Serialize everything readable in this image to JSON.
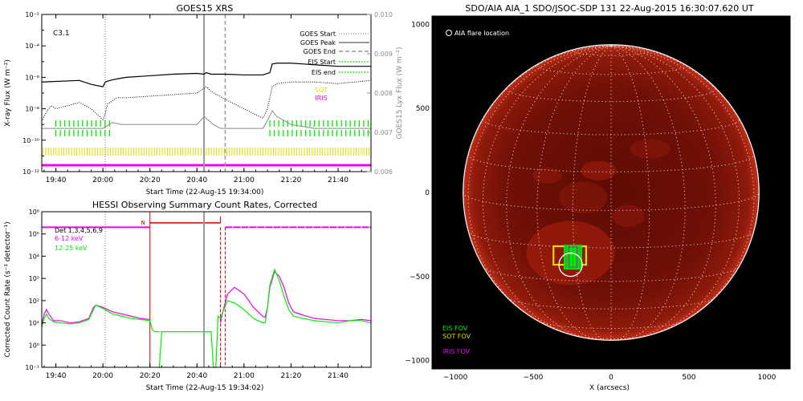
{
  "colors": {
    "goes_line": "#000000",
    "lya_line": "#888888",
    "eis": "#00ee00",
    "sot": "#dddd00",
    "iris": "#ee00ee",
    "hessi_red": "#cc0000",
    "sun_red": "#a81508",
    "sun_bg": "#000000"
  },
  "chart_data": [
    {
      "id": "goes",
      "type": "line",
      "title": "GOES15 XRS",
      "xlabel": "Start Time (22-Aug-15 19:34:00)",
      "ylabel": "X-ray Flux (W m⁻²)",
      "ylabel_right": "GOES15 Lyx Flux (W m⁻²)",
      "xlim_min": [
        34,
        174
      ],
      "xtick_min": [
        40,
        60,
        80,
        100,
        120,
        140,
        160
      ],
      "xtick_labels": [
        "19:40",
        "20:00",
        "20:20",
        "20:40",
        "21:00",
        "21:20",
        "21:40"
      ],
      "ylim_log10": [
        -12,
        -2
      ],
      "ytick_log10": [
        -2,
        -4,
        -6,
        -8,
        -10,
        -12
      ],
      "ytick_labels": [
        "10⁻²",
        "10⁻⁴",
        "10⁻⁶",
        "10⁻⁸",
        "10⁻¹⁰",
        "10⁻¹²"
      ],
      "y2lim": [
        0.006,
        0.01
      ],
      "y2ticks": [
        "0.010",
        "0.009",
        "0.008",
        "0.007",
        "0.006"
      ],
      "class_label": "C3.1",
      "legend": [
        "GOES Start",
        "GOES Peak",
        "GOES End",
        "EIS Start",
        "EIS end",
        "SOT",
        "IRIS"
      ],
      "events_min": {
        "goes_start": 61,
        "goes_peak": 103,
        "goes_end": 112
      },
      "series": [
        {
          "name": "long",
          "x": [
            34,
            50,
            55,
            60,
            61,
            63,
            66,
            70,
            80,
            90,
            100,
            103,
            104,
            106,
            112,
            120,
            128,
            131,
            132,
            134,
            140,
            150,
            160,
            174
          ],
          "y": [
            -6.3,
            -6.2,
            -6.45,
            -6.6,
            -6.3,
            -6.2,
            -6.1,
            -6.0,
            -5.9,
            -5.8,
            -5.75,
            -5.8,
            -5.7,
            -5.8,
            -5.8,
            -5.85,
            -5.85,
            -5.7,
            -5.15,
            -5.1,
            -5.1,
            -5.2,
            -5.3,
            -5.3
          ]
        },
        {
          "name": "short",
          "x": [
            34,
            36,
            38,
            40,
            50,
            55,
            60,
            61,
            62,
            64,
            66,
            70,
            80,
            90,
            100,
            103,
            104,
            106,
            112,
            120,
            128,
            130,
            131,
            132,
            134,
            140,
            150,
            160,
            174
          ],
          "y": [
            -8.8,
            -8.2,
            -7.8,
            -8.0,
            -7.6,
            -8.0,
            -8.7,
            -8.3,
            -7.7,
            -7.5,
            -7.3,
            -7.3,
            -7.2,
            -7.1,
            -7.0,
            -6.7,
            -6.6,
            -6.9,
            -7.4,
            -8.0,
            -8.6,
            -8.0,
            -7.3,
            -6.6,
            -6.4,
            -6.3,
            -6.3,
            -6.4,
            -6.2
          ]
        },
        {
          "name": "lya",
          "x": [
            34,
            60,
            64,
            68,
            100,
            103,
            105,
            107,
            110,
            120,
            128,
            130,
            132,
            134,
            140,
            150,
            160,
            174
          ],
          "y2": [
            0.0071,
            0.0071,
            0.00725,
            0.0072,
            0.0072,
            0.0074,
            0.0073,
            0.0072,
            0.0071,
            0.0071,
            0.0071,
            0.0073,
            0.00755,
            0.0074,
            0.0072,
            0.0071,
            0.0071,
            0.0071
          ]
        }
      ],
      "eis_segments": [
        [
          40,
          63
        ],
        [
          131,
          174
        ]
      ],
      "sot_range": [
        34,
        174
      ],
      "iris_range": [
        34,
        174
      ]
    },
    {
      "id": "hessi",
      "type": "line",
      "title": "HESSI Observing Summary Count Rates, Corrected",
      "xlabel": "Start Time (22-Aug-15 19:34:02)",
      "ylabel": "Corrected Count Rate (s⁻¹ detector⁻¹)",
      "xlim_min": [
        34,
        174
      ],
      "xtick_min": [
        40,
        60,
        80,
        100,
        120,
        140,
        160
      ],
      "xtick_labels": [
        "19:40",
        "20:00",
        "20:20",
        "20:40",
        "21:00",
        "21:20",
        "21:40"
      ],
      "ylim_log10": [
        -1,
        6
      ],
      "ytick_log10": [
        6,
        5,
        4,
        3,
        2,
        1,
        0,
        -1
      ],
      "ytick_labels": [
        "10⁶",
        "10⁵",
        "10⁴",
        "10³",
        "10²",
        "10¹",
        "10⁰",
        "10⁻¹"
      ],
      "legend": [
        "Det 1,3,4,5,6,9",
        "6-12 keV",
        "12-25 keV"
      ],
      "night_marker": "N",
      "events_min": {
        "night_start": 80,
        "peak": 103,
        "end_dash_1": 110,
        "end_dash_2": 112
      },
      "series": [
        {
          "name": "6-12 keV",
          "segments": [
            {
              "x": [
                34,
                35,
                36,
                37,
                39,
                42,
                46,
                50,
                54,
                56,
                57,
                60,
                64,
                68,
                72,
                76,
                80
              ],
              "y": [
                0.9,
                1.4,
                1.6,
                1.4,
                1.1,
                1.1,
                1.0,
                1.05,
                1.2,
                1.7,
                1.8,
                1.7,
                1.5,
                1.4,
                1.3,
                1.2,
                1.15
              ]
            },
            {
              "x": [
                110,
                111,
                113,
                116,
                120,
                124,
                128,
                129,
                130,
                131,
                133,
                135,
                137,
                139,
                141,
                145,
                150,
                155,
                160,
                165,
                170,
                174
              ],
              "y": [
                1.0,
                1.5,
                2.3,
                2.6,
                2.3,
                1.7,
                1.3,
                1.25,
                1.7,
                2.6,
                3.3,
                3.1,
                2.6,
                1.9,
                1.5,
                1.35,
                1.2,
                1.15,
                1.1,
                1.1,
                1.15,
                1.1
              ]
            }
          ]
        },
        {
          "name": "12-25 keV",
          "segments": [
            {
              "x": [
                34,
                35,
                36,
                37,
                39,
                42,
                46,
                50,
                54,
                56,
                57,
                60,
                64,
                68,
                72,
                76,
                80,
                81,
                82,
                84
              ],
              "y": [
                0.8,
                1.2,
                1.4,
                1.2,
                1.05,
                1.0,
                0.95,
                1.0,
                1.15,
                1.6,
                1.8,
                1.65,
                1.4,
                1.3,
                1.2,
                1.15,
                1.1,
                0.7,
                0.6,
                0.6
              ]
            },
            {
              "x": [
                84,
                85,
                106,
                107,
                108
              ],
              "y": [
                -1,
                0.6,
                0.6,
                -1,
                -1
              ]
            },
            {
              "x": [
                108,
                109,
                110,
                111,
                113,
                116,
                120,
                124,
                128,
                129,
                130,
                131,
                133,
                135,
                137,
                139,
                141,
                145,
                150,
                155,
                160,
                165,
                170,
                174
              ],
              "y": [
                -1,
                1.3,
                1.2,
                1.5,
                2.0,
                1.9,
                1.6,
                1.2,
                1.0,
                1.0,
                1.7,
                2.7,
                3.4,
                2.9,
                2.2,
                1.6,
                1.3,
                1.2,
                1.1,
                1.05,
                1.0,
                1.1,
                1.1,
                1.0
              ]
            }
          ]
        }
      ],
      "attenuator": {
        "segments": [
          [
            34,
            80
          ],
          [
            80,
            110
          ],
          [
            112,
            174
          ]
        ],
        "level_log10": 5.3
      }
    },
    {
      "id": "aia",
      "type": "image",
      "title": "SDO/AIA AIA_1 SDO/JSOC-SDP 131 22-Aug-2015 16:30:07.620 UT",
      "xlabel": "X (arcsecs)",
      "xlim": [
        -1150,
        1150
      ],
      "ylim": [
        -1050,
        1050
      ],
      "xticks": [
        -1000,
        -500,
        0,
        500,
        1000
      ],
      "yticks": [
        1000,
        500,
        0,
        -500,
        -1000
      ],
      "disk_radius_arcsec": 950,
      "grid_step_deg": 15,
      "flare_label": "AIA flare location",
      "flare_center": [
        -260,
        -430
      ],
      "flare_radius": 75,
      "eis_fov": {
        "center": [
          -245,
          -385
        ],
        "width": 110,
        "height": 140
      },
      "sot_fov": {
        "center": [
          -265,
          -375
        ],
        "width": 210,
        "height": 110
      },
      "iris_fov": {
        "center": [
          -245,
          -385
        ],
        "width": 60,
        "height": 120
      },
      "fov_labels": [
        "EIS FOV",
        "SOT FOV",
        "IRIS FOV"
      ]
    }
  ]
}
